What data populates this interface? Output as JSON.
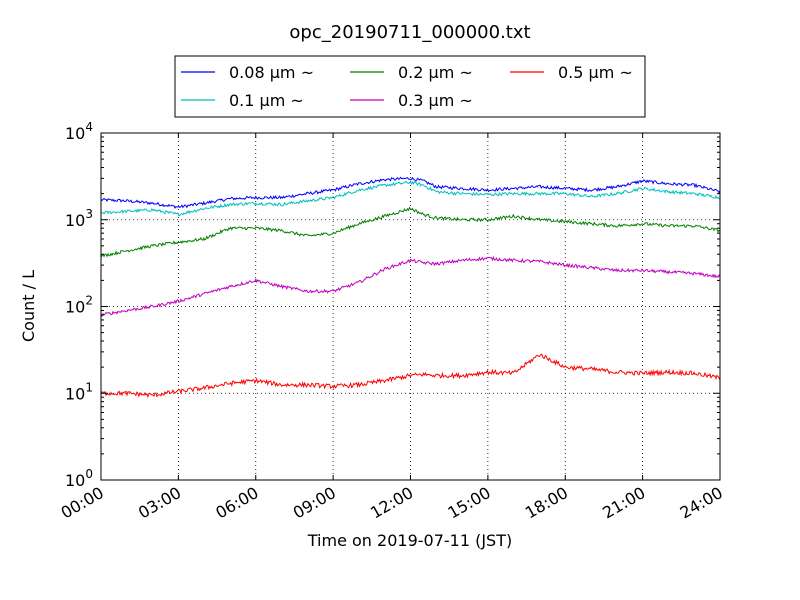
{
  "chart_data": {
    "type": "line",
    "title": "opc_20190711_000000.txt",
    "xlabel": "Time on 2019-07-11 (JST)",
    "ylabel": "Count / L",
    "x_unit": "hour",
    "xlim": [
      0,
      24
    ],
    "ylim": [
      1,
      10000
    ],
    "yscale": "log",
    "grid": true,
    "legend": {
      "position": "top-center",
      "ncol": 3
    },
    "x_ticks": [
      {
        "value": 0,
        "label": "00:00"
      },
      {
        "value": 3,
        "label": "03:00"
      },
      {
        "value": 6,
        "label": "06:00"
      },
      {
        "value": 9,
        "label": "09:00"
      },
      {
        "value": 12,
        "label": "12:00"
      },
      {
        "value": 15,
        "label": "15:00"
      },
      {
        "value": 18,
        "label": "18:00"
      },
      {
        "value": 21,
        "label": "21:00"
      },
      {
        "value": 24,
        "label": "24:00"
      }
    ],
    "y_ticks": [
      {
        "value": 1,
        "base": "10",
        "exp": "0"
      },
      {
        "value": 10,
        "base": "10",
        "exp": "1"
      },
      {
        "value": 100,
        "base": "10",
        "exp": "2"
      },
      {
        "value": 1000,
        "base": "10",
        "exp": "3"
      },
      {
        "value": 10000,
        "base": "10",
        "exp": "4"
      }
    ],
    "x": [
      0,
      1,
      2,
      3,
      4,
      5,
      6,
      7,
      8,
      9,
      10,
      11,
      12,
      12.5,
      13,
      14,
      15,
      16,
      17,
      18,
      19,
      20,
      21,
      22,
      23,
      24
    ],
    "series": [
      {
        "name": "0.08 μm ~",
        "color": "#0000ff",
        "values": [
          1700,
          1650,
          1550,
          1400,
          1550,
          1750,
          1800,
          1800,
          2000,
          2200,
          2600,
          2900,
          3000,
          2800,
          2400,
          2300,
          2200,
          2300,
          2400,
          2300,
          2200,
          2400,
          2800,
          2600,
          2500,
          2100
        ]
      },
      {
        "name": "0.1 μm ~",
        "color": "#00bfbf",
        "values": [
          1200,
          1250,
          1300,
          1150,
          1350,
          1500,
          1550,
          1500,
          1650,
          1800,
          2200,
          2500,
          2700,
          2500,
          2100,
          2000,
          1950,
          2000,
          2000,
          2000,
          1850,
          2000,
          2300,
          2100,
          2000,
          1800
        ]
      },
      {
        "name": "0.2 μm ~",
        "color": "#008000",
        "values": [
          380,
          440,
          500,
          550,
          600,
          800,
          800,
          750,
          650,
          700,
          900,
          1100,
          1350,
          1150,
          1050,
          1000,
          1000,
          1100,
          1000,
          950,
          900,
          850,
          900,
          850,
          850,
          750
        ]
      },
      {
        "name": "0.3 μm ~",
        "color": "#bf00bf",
        "values": [
          80,
          90,
          100,
          115,
          140,
          170,
          200,
          170,
          150,
          150,
          190,
          270,
          340,
          320,
          310,
          340,
          360,
          340,
          330,
          300,
          280,
          260,
          260,
          250,
          240,
          220
        ]
      },
      {
        "name": "0.5 μm ~",
        "color": "#ff0000",
        "values": [
          10,
          10,
          9.5,
          10.5,
          11.5,
          13,
          14,
          12.5,
          12.5,
          12,
          12.5,
          14,
          16,
          16.5,
          16,
          16,
          17.5,
          17,
          28,
          20,
          19,
          17.5,
          17,
          17.5,
          17,
          15
        ]
      }
    ]
  }
}
